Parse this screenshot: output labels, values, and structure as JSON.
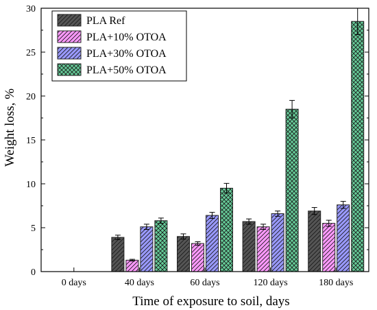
{
  "chart_data": {
    "type": "bar",
    "title": "",
    "xlabel": "Time of exposure to soil, days",
    "ylabel": "Weight loss, %",
    "categories": [
      "0 days",
      "40 days",
      "60 days",
      "120 days",
      "180 days"
    ],
    "ylim": [
      0,
      30
    ],
    "yticks": [
      0,
      5,
      10,
      15,
      20,
      25,
      30
    ],
    "grid": false,
    "legend_position": "top-left",
    "series": [
      {
        "name": "PLA Ref",
        "color": "#555555",
        "pattern": "diagonal-hatch",
        "values": [
          0,
          3.9,
          4.0,
          5.7,
          6.9
        ],
        "errors": [
          0,
          0.25,
          0.3,
          0.3,
          0.4
        ]
      },
      {
        "name": "PLA+10% OTOA",
        "color": "#ff99ff",
        "pattern": "diagonal-hatch",
        "values": [
          0,
          1.3,
          3.2,
          5.1,
          5.5
        ],
        "errors": [
          0,
          0.1,
          0.2,
          0.3,
          0.35
        ]
      },
      {
        "name": "PLA+30% OTOA",
        "color": "#9999ff",
        "pattern": "diagonal-hatch",
        "values": [
          0,
          5.1,
          6.4,
          6.6,
          7.6
        ],
        "errors": [
          0,
          0.3,
          0.35,
          0.3,
          0.4
        ]
      },
      {
        "name": "PLA+50% OTOA",
        "color": "#66cc99",
        "pattern": "cross-hatch",
        "values": [
          0,
          5.8,
          9.5,
          18.5,
          28.5
        ],
        "errors": [
          0,
          0.3,
          0.55,
          1.0,
          1.5
        ]
      }
    ]
  }
}
